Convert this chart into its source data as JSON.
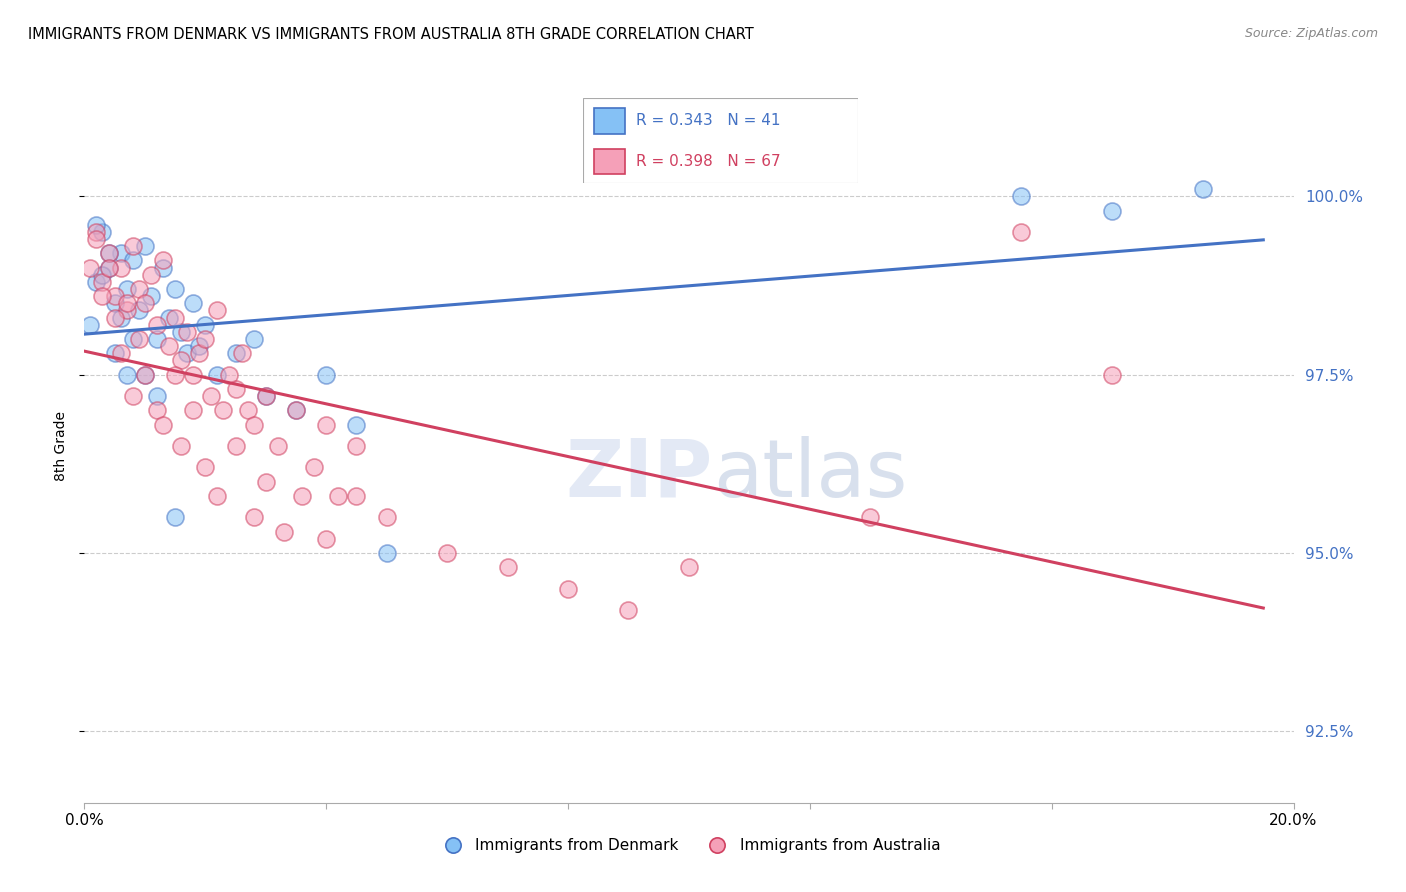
{
  "title": "IMMIGRANTS FROM DENMARK VS IMMIGRANTS FROM AUSTRALIA 8TH GRADE CORRELATION CHART",
  "source": "Source: ZipAtlas.com",
  "ylabel": "8th Grade",
  "y_ticks": [
    92.5,
    95.0,
    97.5,
    100.0
  ],
  "y_tick_labels": [
    "92.5%",
    "95.0%",
    "97.5%",
    "100.0%"
  ],
  "xlim": [
    0.0,
    0.2
  ],
  "ylim": [
    91.5,
    101.5
  ],
  "color_denmark": "#85c1f5",
  "color_australia": "#f5a0b8",
  "line_color_denmark": "#4472c4",
  "line_color_australia": "#d04060",
  "denmark_R": 0.343,
  "denmark_N": 41,
  "australia_R": 0.398,
  "australia_N": 67,
  "watermark_zip": "ZIP",
  "watermark_atlas": "atlas",
  "denmark_x": [
    0.001,
    0.002,
    0.003,
    0.004,
    0.005,
    0.006,
    0.007,
    0.008,
    0.009,
    0.01,
    0.011,
    0.012,
    0.013,
    0.014,
    0.015,
    0.016,
    0.017,
    0.018,
    0.019,
    0.02,
    0.022,
    0.025,
    0.028,
    0.03,
    0.035,
    0.04,
    0.045,
    0.05,
    0.002,
    0.003,
    0.004,
    0.005,
    0.006,
    0.007,
    0.008,
    0.01,
    0.012,
    0.015,
    0.155,
    0.17,
    0.185
  ],
  "denmark_y": [
    98.2,
    98.8,
    99.5,
    99.0,
    98.5,
    99.2,
    98.7,
    99.1,
    98.4,
    99.3,
    98.6,
    98.0,
    99.0,
    98.3,
    98.7,
    98.1,
    97.8,
    98.5,
    97.9,
    98.2,
    97.5,
    97.8,
    98.0,
    97.2,
    97.0,
    97.5,
    96.8,
    95.0,
    99.6,
    98.9,
    99.2,
    97.8,
    98.3,
    97.5,
    98.0,
    97.5,
    97.2,
    95.5,
    100.0,
    99.8,
    100.1
  ],
  "australia_x": [
    0.001,
    0.002,
    0.003,
    0.004,
    0.005,
    0.006,
    0.007,
    0.008,
    0.009,
    0.01,
    0.011,
    0.012,
    0.013,
    0.014,
    0.015,
    0.016,
    0.017,
    0.018,
    0.019,
    0.02,
    0.021,
    0.022,
    0.023,
    0.024,
    0.025,
    0.026,
    0.027,
    0.028,
    0.03,
    0.032,
    0.035,
    0.038,
    0.04,
    0.042,
    0.045,
    0.002,
    0.003,
    0.004,
    0.005,
    0.006,
    0.007,
    0.008,
    0.009,
    0.01,
    0.012,
    0.013,
    0.015,
    0.016,
    0.018,
    0.02,
    0.022,
    0.025,
    0.028,
    0.03,
    0.033,
    0.036,
    0.04,
    0.045,
    0.05,
    0.06,
    0.07,
    0.08,
    0.09,
    0.1,
    0.13,
    0.155,
    0.17
  ],
  "australia_y": [
    99.0,
    99.5,
    98.8,
    99.2,
    98.6,
    99.0,
    98.4,
    99.3,
    98.7,
    98.5,
    98.9,
    98.2,
    99.1,
    97.9,
    98.3,
    97.7,
    98.1,
    97.5,
    97.8,
    98.0,
    97.2,
    98.4,
    97.0,
    97.5,
    97.3,
    97.8,
    97.0,
    96.8,
    97.2,
    96.5,
    97.0,
    96.2,
    96.8,
    95.8,
    96.5,
    99.4,
    98.6,
    99.0,
    98.3,
    97.8,
    98.5,
    97.2,
    98.0,
    97.5,
    97.0,
    96.8,
    97.5,
    96.5,
    97.0,
    96.2,
    95.8,
    96.5,
    95.5,
    96.0,
    95.3,
    95.8,
    95.2,
    95.8,
    95.5,
    95.0,
    94.8,
    94.5,
    94.2,
    94.8,
    95.5,
    99.5,
    97.5
  ]
}
